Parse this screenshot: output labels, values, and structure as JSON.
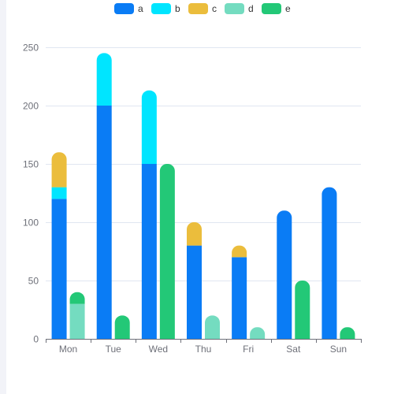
{
  "colors": {
    "background": "#ffffff",
    "side_panel": "#f2f3f8",
    "grid": "#e0e6f1",
    "axis": "#6e7079"
  },
  "chart_data": {
    "type": "bar",
    "stacked": true,
    "categories": [
      "Mon",
      "Tue",
      "Wed",
      "Thu",
      "Fri",
      "Sat",
      "Sun"
    ],
    "ylim": [
      0,
      250
    ],
    "yticks": [
      0,
      50,
      100,
      150,
      200,
      250
    ],
    "grid": true,
    "legend_position": "top-center",
    "stacks": [
      {
        "stack": "one",
        "series": [
          "a",
          "b",
          "c"
        ]
      },
      {
        "stack": "two",
        "series": [
          "d",
          "e"
        ]
      }
    ],
    "series": [
      {
        "name": "a",
        "color": "#0a7cf5",
        "stack": "one",
        "values": [
          120,
          200,
          150,
          80,
          70,
          110,
          130
        ]
      },
      {
        "name": "b",
        "color": "#00e5ff",
        "stack": "one",
        "values": [
          10,
          45,
          63,
          0,
          0,
          0,
          0
        ]
      },
      {
        "name": "c",
        "color": "#ebbd3c",
        "stack": "one",
        "values": [
          30,
          0,
          0,
          20,
          10,
          0,
          0
        ]
      },
      {
        "name": "d",
        "color": "#74dcc0",
        "stack": "two",
        "values": [
          30,
          0,
          0,
          20,
          10,
          0,
          0
        ]
      },
      {
        "name": "e",
        "color": "#23c877",
        "stack": "two",
        "values": [
          10,
          20,
          150,
          0,
          0,
          50,
          10
        ]
      }
    ]
  }
}
